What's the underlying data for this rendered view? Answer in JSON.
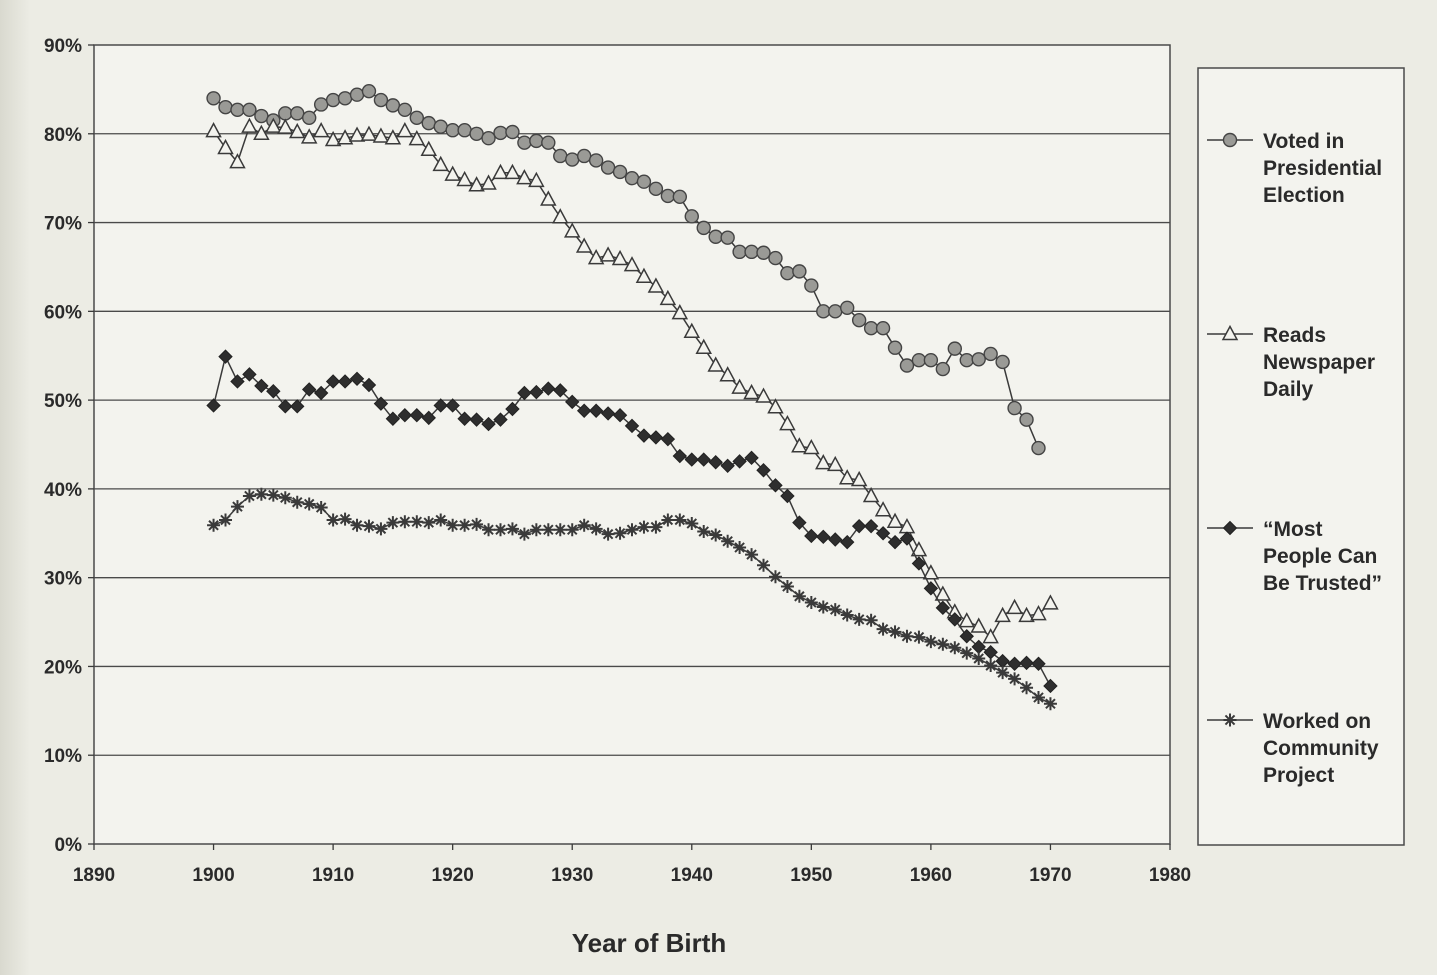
{
  "chart_data": {
    "type": "line",
    "title": "",
    "xlabel": "Year of Birth",
    "ylabel": "",
    "xlim": [
      1890,
      1980
    ],
    "ylim": [
      0,
      90
    ],
    "x_ticks": [
      "1890",
      "1900",
      "1910",
      "1920",
      "1930",
      "1940",
      "1950",
      "1960",
      "1970",
      "1980"
    ],
    "y_ticks": [
      "0%",
      "10%",
      "20%",
      "30%",
      "40%",
      "50%",
      "60%",
      "70%",
      "80%",
      "90%"
    ],
    "grid": "horizontal",
    "legend_position": "right",
    "series": [
      {
        "name": "Voted in Presidential Election",
        "legend_lines": [
          "Voted in",
          "Presidential",
          "Election"
        ],
        "marker": "circle",
        "x": [
          1900,
          1901,
          1902,
          1903,
          1904,
          1905,
          1906,
          1907,
          1908,
          1909,
          1910,
          1911,
          1912,
          1913,
          1914,
          1915,
          1916,
          1917,
          1918,
          1919,
          1920,
          1921,
          1922,
          1923,
          1924,
          1925,
          1926,
          1927,
          1928,
          1929,
          1930,
          1931,
          1932,
          1933,
          1934,
          1935,
          1936,
          1937,
          1938,
          1939,
          1940,
          1941,
          1942,
          1943,
          1944,
          1945,
          1946,
          1947,
          1948,
          1949,
          1950,
          1951,
          1952,
          1953,
          1954,
          1955,
          1956,
          1957,
          1958,
          1959,
          1960,
          1961,
          1962,
          1963,
          1964,
          1965,
          1966,
          1967,
          1968,
          1969
        ],
        "y": [
          84.0,
          83.0,
          82.7,
          82.7,
          82.0,
          81.5,
          82.3,
          82.3,
          81.8,
          83.3,
          83.8,
          84.0,
          84.4,
          84.8,
          83.8,
          83.2,
          82.7,
          81.8,
          81.2,
          80.8,
          80.4,
          80.4,
          80.0,
          79.5,
          80.1,
          80.2,
          79.0,
          79.2,
          79.0,
          77.5,
          77.1,
          77.5,
          77.0,
          76.2,
          75.7,
          75.0,
          74.6,
          73.8,
          73.0,
          72.9,
          70.7,
          69.4,
          68.4,
          68.3,
          66.7,
          66.7,
          66.6,
          66.0,
          64.3,
          64.5,
          62.9,
          60.0,
          60.0,
          60.4,
          59.0,
          58.1,
          58.1,
          55.9,
          53.9,
          54.5,
          54.5,
          53.5,
          55.8,
          54.5,
          54.6,
          55.2,
          54.3,
          49.1,
          47.8,
          44.6
        ]
      },
      {
        "name": "Reads Newspaper Daily",
        "legend_lines": [
          "Reads",
          "Newspaper",
          "Daily"
        ],
        "marker": "triangle",
        "x": [
          1900,
          1901,
          1902,
          1903,
          1904,
          1905,
          1906,
          1907,
          1908,
          1909,
          1910,
          1911,
          1912,
          1913,
          1914,
          1915,
          1916,
          1917,
          1918,
          1919,
          1920,
          1921,
          1922,
          1923,
          1924,
          1925,
          1926,
          1927,
          1928,
          1929,
          1930,
          1931,
          1932,
          1933,
          1934,
          1935,
          1936,
          1937,
          1938,
          1939,
          1940,
          1941,
          1942,
          1943,
          1944,
          1945,
          1946,
          1947,
          1948,
          1949,
          1950,
          1951,
          1952,
          1953,
          1954,
          1955,
          1956,
          1957,
          1958,
          1959,
          1960,
          1961,
          1962,
          1963,
          1964,
          1965,
          1966,
          1967,
          1968,
          1969,
          1970
        ],
        "y": [
          80.3,
          78.4,
          76.8,
          80.8,
          80.0,
          80.8,
          80.7,
          80.2,
          79.6,
          80.3,
          79.3,
          79.5,
          79.8,
          79.9,
          79.7,
          79.5,
          80.3,
          79.4,
          78.2,
          76.5,
          75.4,
          74.8,
          74.2,
          74.4,
          75.6,
          75.6,
          75.0,
          74.7,
          72.6,
          70.6,
          69.0,
          67.3,
          66.0,
          66.3,
          65.9,
          65.2,
          63.9,
          62.8,
          61.4,
          59.8,
          57.7,
          55.9,
          53.9,
          52.8,
          51.4,
          50.8,
          50.4,
          49.2,
          47.3,
          44.8,
          44.6,
          42.9,
          42.7,
          41.2,
          41.0,
          39.2,
          37.6,
          36.3,
          35.7,
          33.1,
          30.5,
          28.1,
          26.1,
          25.1,
          24.5,
          23.3,
          25.7,
          26.6,
          25.7,
          25.9,
          27.1
        ]
      },
      {
        "name": "“Most People Can Be Trusted”",
        "legend_lines": [
          "“Most",
          "People Can",
          "Be Trusted”"
        ],
        "marker": "diamond",
        "x": [
          1900,
          1901,
          1902,
          1903,
          1904,
          1905,
          1906,
          1907,
          1908,
          1909,
          1910,
          1911,
          1912,
          1913,
          1914,
          1915,
          1916,
          1917,
          1918,
          1919,
          1920,
          1921,
          1922,
          1923,
          1924,
          1925,
          1926,
          1927,
          1928,
          1929,
          1930,
          1931,
          1932,
          1933,
          1934,
          1935,
          1936,
          1937,
          1938,
          1939,
          1940,
          1941,
          1942,
          1943,
          1944,
          1945,
          1946,
          1947,
          1948,
          1949,
          1950,
          1951,
          1952,
          1953,
          1954,
          1955,
          1956,
          1957,
          1958,
          1959,
          1960,
          1961,
          1962,
          1963,
          1964,
          1965,
          1966,
          1967,
          1968,
          1969,
          1970
        ],
        "y": [
          49.4,
          54.9,
          52.1,
          52.9,
          51.6,
          51.0,
          49.3,
          49.3,
          51.2,
          50.8,
          52.1,
          52.1,
          52.4,
          51.7,
          49.6,
          47.9,
          48.3,
          48.3,
          48.0,
          49.4,
          49.4,
          47.9,
          47.8,
          47.3,
          47.8,
          49.0,
          50.8,
          50.9,
          51.3,
          51.1,
          49.8,
          48.8,
          48.8,
          48.5,
          48.3,
          47.1,
          46.0,
          45.8,
          45.6,
          43.7,
          43.3,
          43.3,
          43.0,
          42.6,
          43.1,
          43.5,
          42.1,
          40.4,
          39.2,
          36.2,
          34.7,
          34.6,
          34.3,
          34.0,
          35.8,
          35.8,
          35.0,
          34.0,
          34.4,
          31.6,
          28.8,
          26.6,
          25.3,
          23.4,
          22.2,
          21.6,
          20.6,
          20.3,
          20.4,
          20.3,
          17.8
        ]
      },
      {
        "name": "Worked on Community Project",
        "legend_lines": [
          "Worked on",
          "Community",
          "Project"
        ],
        "marker": "asterisk",
        "x": [
          1900,
          1901,
          1902,
          1903,
          1904,
          1905,
          1906,
          1907,
          1908,
          1909,
          1910,
          1911,
          1912,
          1913,
          1914,
          1915,
          1916,
          1917,
          1918,
          1919,
          1920,
          1921,
          1922,
          1923,
          1924,
          1925,
          1926,
          1927,
          1928,
          1929,
          1930,
          1931,
          1932,
          1933,
          1934,
          1935,
          1936,
          1937,
          1938,
          1939,
          1940,
          1941,
          1942,
          1943,
          1944,
          1945,
          1946,
          1947,
          1948,
          1949,
          1950,
          1951,
          1952,
          1953,
          1954,
          1955,
          1956,
          1957,
          1958,
          1959,
          1960,
          1961,
          1962,
          1963,
          1964,
          1965,
          1966,
          1967,
          1968,
          1969,
          1970
        ],
        "y": [
          35.9,
          36.5,
          38.0,
          39.2,
          39.4,
          39.3,
          39.0,
          38.5,
          38.3,
          37.9,
          36.5,
          36.6,
          35.9,
          35.8,
          35.5,
          36.2,
          36.3,
          36.3,
          36.2,
          36.5,
          35.9,
          35.9,
          36.0,
          35.4,
          35.4,
          35.5,
          34.9,
          35.4,
          35.4,
          35.4,
          35.4,
          35.9,
          35.5,
          34.9,
          35.0,
          35.4,
          35.7,
          35.7,
          36.5,
          36.5,
          36.1,
          35.2,
          34.8,
          34.1,
          33.4,
          32.6,
          31.4,
          30.1,
          29.0,
          27.9,
          27.2,
          26.7,
          26.4,
          25.8,
          25.3,
          25.2,
          24.2,
          23.9,
          23.4,
          23.3,
          22.8,
          22.5,
          22.1,
          21.5,
          20.9,
          20.1,
          19.3,
          18.6,
          17.6,
          16.5,
          15.8
        ]
      }
    ]
  }
}
